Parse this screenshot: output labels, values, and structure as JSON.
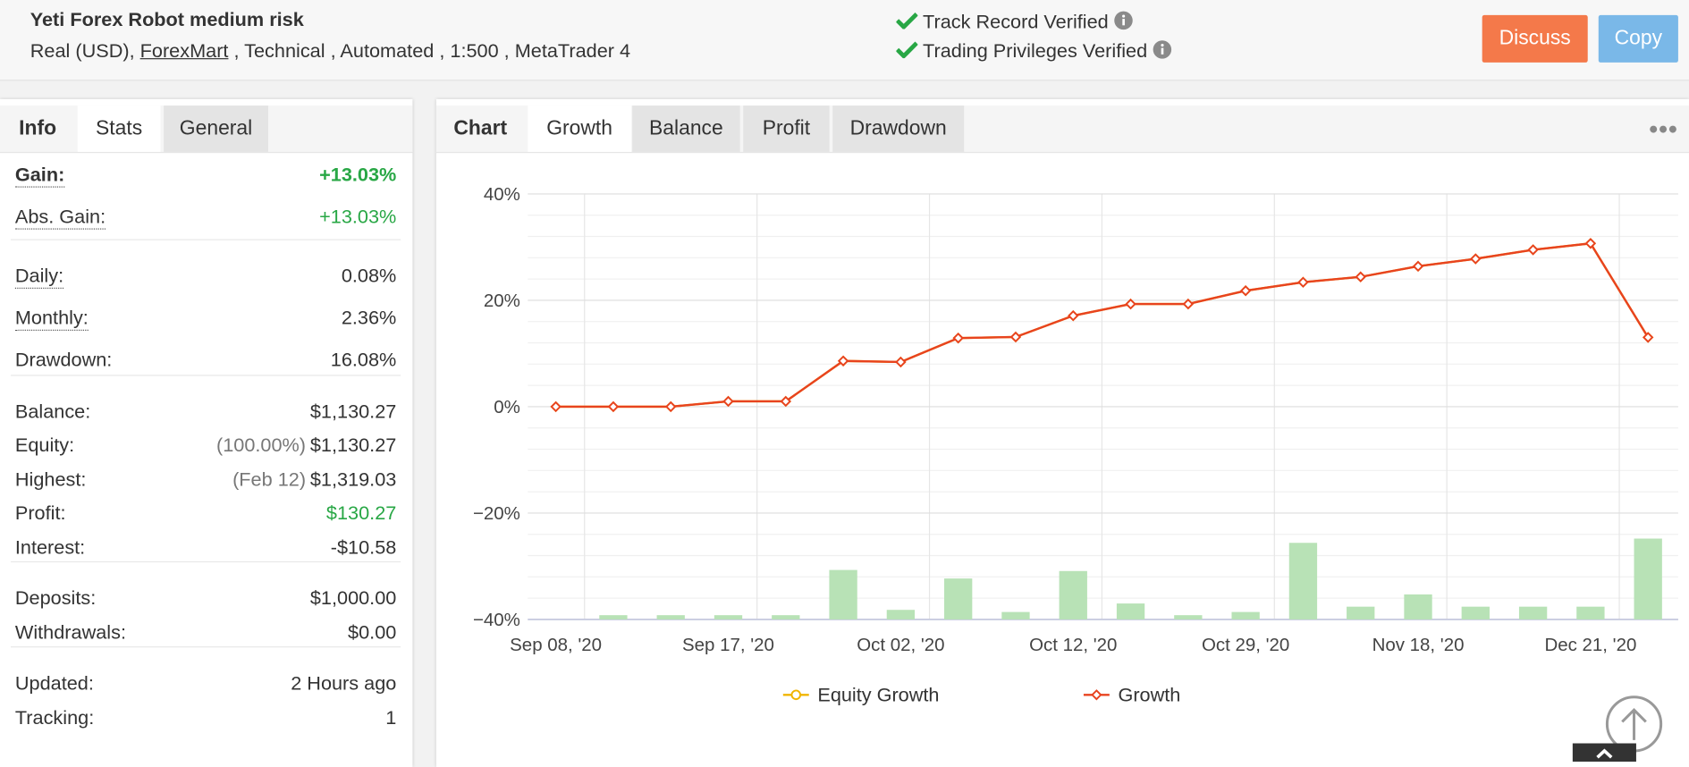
{
  "header": {
    "title": "Yeti Forex Robot medium risk",
    "account_type": "Real (USD),",
    "broker": "ForexMart",
    "details": ", Technical , Automated , 1:500 , MetaTrader 4",
    "verified": [
      "Track Record Verified",
      "Trading Privileges Verified"
    ],
    "buttons": [
      "Discuss",
      "Copy"
    ]
  },
  "left_tabs": [
    "Info",
    "Stats",
    "General"
  ],
  "stats": {
    "groups": [
      [
        {
          "label": "Gain:",
          "value": "+13.03%",
          "color": "#28a745",
          "bold": true,
          "underline": true
        },
        {
          "label": "Abs. Gain:",
          "value": "+13.03%",
          "color": "#28a745",
          "underline": true
        }
      ],
      [
        {
          "label": "Daily:",
          "value": "0.08%",
          "underline": true
        },
        {
          "label": "Monthly:",
          "value": "2.36%",
          "underline": true
        },
        {
          "label": "Drawdown:",
          "value": "16.08%"
        }
      ],
      [
        {
          "label": "Balance:",
          "value": "$1,130.27"
        },
        {
          "label": "Equity:",
          "note": "(100.00%)",
          "value": "$1,130.27"
        },
        {
          "label": "Highest:",
          "note": "(Feb 12)",
          "value": "$1,319.03"
        },
        {
          "label": "Profit:",
          "value": "$130.27",
          "color": "#28a745"
        },
        {
          "label": "Interest:",
          "value": "-$10.58"
        }
      ],
      [
        {
          "label": "Deposits:",
          "value": "$1,000.00"
        },
        {
          "label": "Withdrawals:",
          "value": "$0.00"
        }
      ],
      [
        {
          "label": "Updated:",
          "value": "2 Hours ago"
        },
        {
          "label": "Tracking:",
          "value": "1"
        }
      ]
    ]
  },
  "chart_tabs": {
    "label": "Chart",
    "tabs": [
      "Growth",
      "Balance",
      "Profit",
      "Drawdown"
    ]
  },
  "chart_data": {
    "type": "line",
    "categories": [
      "Sep 08, '20",
      null,
      null,
      "Sep 17, '20",
      null,
      null,
      "Oct 02, '20",
      null,
      null,
      "Oct 12, '20",
      null,
      null,
      "Oct 29, '20",
      null,
      null,
      "Nov 18, '20",
      null,
      null,
      "Dec 21, '20",
      null
    ],
    "series": [
      {
        "name": "Equity Growth",
        "color": "#f0b400",
        "values": [
          0,
          0,
          0,
          1,
          1,
          8.6,
          8.4,
          12.9,
          13.1,
          17.1,
          19.3,
          19.3,
          21.8,
          23.4,
          24.4,
          26.4,
          27.8,
          29.5,
          30.7,
          13.03
        ]
      },
      {
        "name": "Growth",
        "color": "#e8431f",
        "values": [
          0,
          0,
          0,
          1,
          1,
          8.6,
          8.4,
          12.9,
          13.1,
          17.1,
          19.3,
          19.3,
          21.8,
          23.4,
          24.4,
          26.4,
          27.8,
          29.5,
          30.7,
          13.03
        ]
      },
      {
        "type": "bar",
        "axis": "y2",
        "color": "#b8e2b6",
        "values": [
          null,
          0.8,
          0.8,
          0.8,
          0.8,
          9.3,
          1.8,
          7.7,
          1.4,
          9.1,
          3.0,
          0.8,
          1.4,
          14.4,
          2.4,
          4.7,
          2.4,
          2.4,
          2.4,
          15.2
        ]
      }
    ],
    "ylim": [
      -40,
      40
    ],
    "yticks": [
      {
        "value": 40,
        "label": "40%"
      },
      {
        "value": 20,
        "label": "20%"
      },
      {
        "value": 0,
        "label": "0%"
      },
      {
        "value": -20,
        "label": "−20%"
      },
      {
        "value": -40,
        "label": "−40%"
      }
    ],
    "y2lim": [
      0,
      80
    ],
    "grid": true
  }
}
